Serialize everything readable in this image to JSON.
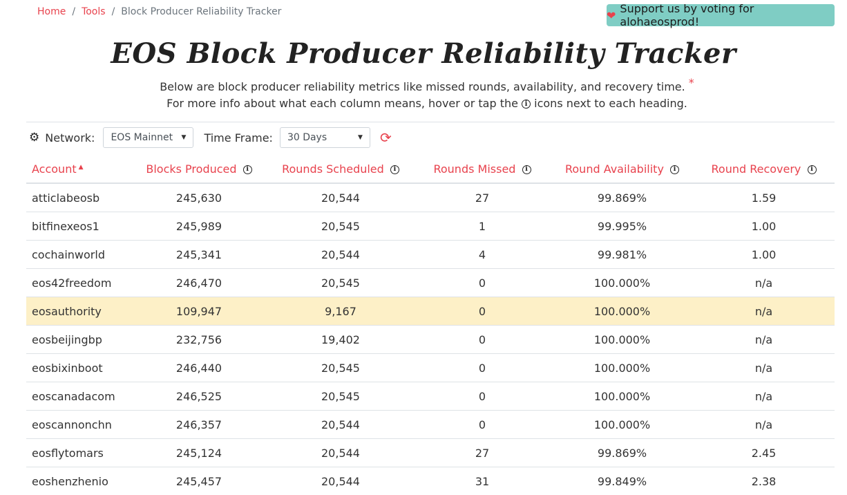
{
  "breadcrumb": {
    "home": "Home",
    "tools": "Tools",
    "current": "Block Producer Reliability Tracker",
    "sep": "/"
  },
  "support": {
    "label": "Support us by voting for alohaeosprod!",
    "heart": "❤"
  },
  "title": "EOS Block Producer Reliability Tracker",
  "description": {
    "line1": "Below are block producer reliability metrics like missed rounds, availability, and recovery time.",
    "star": "*",
    "line2_a": "For more info about what each column means, hover or tap the",
    "line2_b": "icons next to each heading."
  },
  "controls": {
    "network_label": "Network:",
    "network_value": "EOS Mainnet",
    "timeframe_label": "Time Frame:",
    "timeframe_value": "30 Days"
  },
  "icons": {
    "gear": "⚙",
    "info": "i",
    "refresh": "⟳",
    "caret": "▼",
    "sort_up": "▲"
  },
  "colors": {
    "accent": "#e8424d",
    "support_bg": "#7fcdc4",
    "highlight_row": "#fdf0c7"
  },
  "table": {
    "headers": [
      "Account",
      "Blocks Produced",
      "Rounds Scheduled",
      "Rounds Missed",
      "Round Availability",
      "Round Recovery"
    ],
    "rows": [
      [
        "atticlabeosb",
        "245,630",
        "20,544",
        "27",
        "99.869%",
        "1.59"
      ],
      [
        "bitfinexeos1",
        "245,989",
        "20,545",
        "1",
        "99.995%",
        "1.00"
      ],
      [
        "cochainworld",
        "245,341",
        "20,544",
        "4",
        "99.981%",
        "1.00"
      ],
      [
        "eos42freedom",
        "246,470",
        "20,545",
        "0",
        "100.000%",
        "n/a"
      ],
      [
        "eosauthority",
        "109,947",
        "9,167",
        "0",
        "100.000%",
        "n/a"
      ],
      [
        "eosbeijingbp",
        "232,756",
        "19,402",
        "0",
        "100.000%",
        "n/a"
      ],
      [
        "eosbixinboot",
        "246,440",
        "20,545",
        "0",
        "100.000%",
        "n/a"
      ],
      [
        "eoscanadacom",
        "246,525",
        "20,545",
        "0",
        "100.000%",
        "n/a"
      ],
      [
        "eoscannonchn",
        "246,357",
        "20,544",
        "0",
        "100.000%",
        "n/a"
      ],
      [
        "eosflytomars",
        "245,124",
        "20,544",
        "27",
        "99.869%",
        "2.45"
      ],
      [
        "eoshenzhenio",
        "245,457",
        "20,544",
        "31",
        "99.849%",
        "2.38"
      ]
    ],
    "highlighted_row": 4
  }
}
